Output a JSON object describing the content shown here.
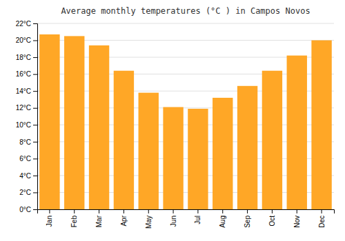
{
  "chart_data": {
    "type": "bar",
    "title": "Average monthly temperatures (°C ) in Campos Novos",
    "categories": [
      "Jan",
      "Feb",
      "Mar",
      "Apr",
      "May",
      "Jun",
      "Jul",
      "Aug",
      "Sep",
      "Oct",
      "Nov",
      "Dec"
    ],
    "values": [
      20.7,
      20.5,
      19.4,
      16.4,
      13.8,
      12.1,
      11.9,
      13.2,
      14.6,
      16.4,
      18.2,
      20.0
    ],
    "color": "#FFA726",
    "ylim": [
      0,
      22
    ],
    "yticks": [
      {
        "value": 0,
        "label": "0°C"
      },
      {
        "value": 2,
        "label": "2°C"
      },
      {
        "value": 4,
        "label": "4°C"
      },
      {
        "value": 6,
        "label": "6°C"
      },
      {
        "value": 8,
        "label": "8°C"
      },
      {
        "value": 10,
        "label": "10°C"
      },
      {
        "value": 12,
        "label": "12°C"
      },
      {
        "value": 14,
        "label": "14°C"
      },
      {
        "value": 16,
        "label": "16°C"
      },
      {
        "value": 18,
        "label": "18°C"
      },
      {
        "value": 20,
        "label": "20°C"
      },
      {
        "value": 22,
        "label": "22°C"
      }
    ],
    "grid": true
  }
}
